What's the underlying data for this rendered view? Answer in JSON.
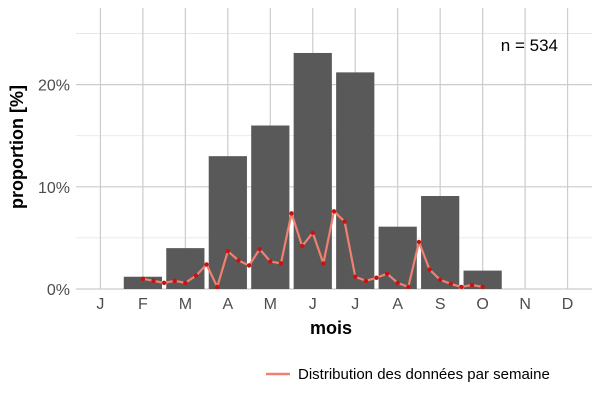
{
  "chart_data": {
    "type": "bar",
    "categories": [
      "J",
      "F",
      "M",
      "A",
      "M",
      "J",
      "J",
      "A",
      "S",
      "O",
      "N",
      "D"
    ],
    "values": [
      0.0,
      1.2,
      4.0,
      13.0,
      16.0,
      23.1,
      21.2,
      6.1,
      9.1,
      1.8,
      0.0,
      0.0
    ],
    "xlabel": "mois",
    "ylabel": "proportion [%]",
    "ylim": [
      0,
      27.5
    ],
    "yticks": [
      0,
      10,
      20
    ],
    "ytick_labels": [
      "0%",
      "10%",
      "20%"
    ],
    "grid": true,
    "annotation": "n = 534",
    "bar_color": "#595959",
    "line_series": {
      "name": "Distribution des données par semaine",
      "color": "#f08070",
      "point_color": "#cc1111",
      "x": [
        2.0,
        2.25,
        2.5,
        2.75,
        3.0,
        3.25,
        3.5,
        3.75,
        4.0,
        4.25,
        4.5,
        4.75,
        5.0,
        5.25,
        5.5,
        5.75,
        6.0,
        6.25,
        6.5,
        6.75,
        7.0,
        7.25,
        7.5,
        7.75,
        8.0,
        8.25,
        8.5,
        8.75,
        9.0,
        9.25,
        9.5,
        9.75,
        10.0
      ],
      "y": [
        1.0,
        0.8,
        0.6,
        0.8,
        0.6,
        1.3,
        2.4,
        0.2,
        3.7,
        2.8,
        2.3,
        3.9,
        2.7,
        2.5,
        7.4,
        4.2,
        5.5,
        2.5,
        7.6,
        6.6,
        1.2,
        0.8,
        1.1,
        1.5,
        0.6,
        0.2,
        4.6,
        1.9,
        0.9,
        0.5,
        0.2,
        0.4,
        0.2
      ]
    },
    "legend": {
      "position": "bottom-right"
    }
  }
}
